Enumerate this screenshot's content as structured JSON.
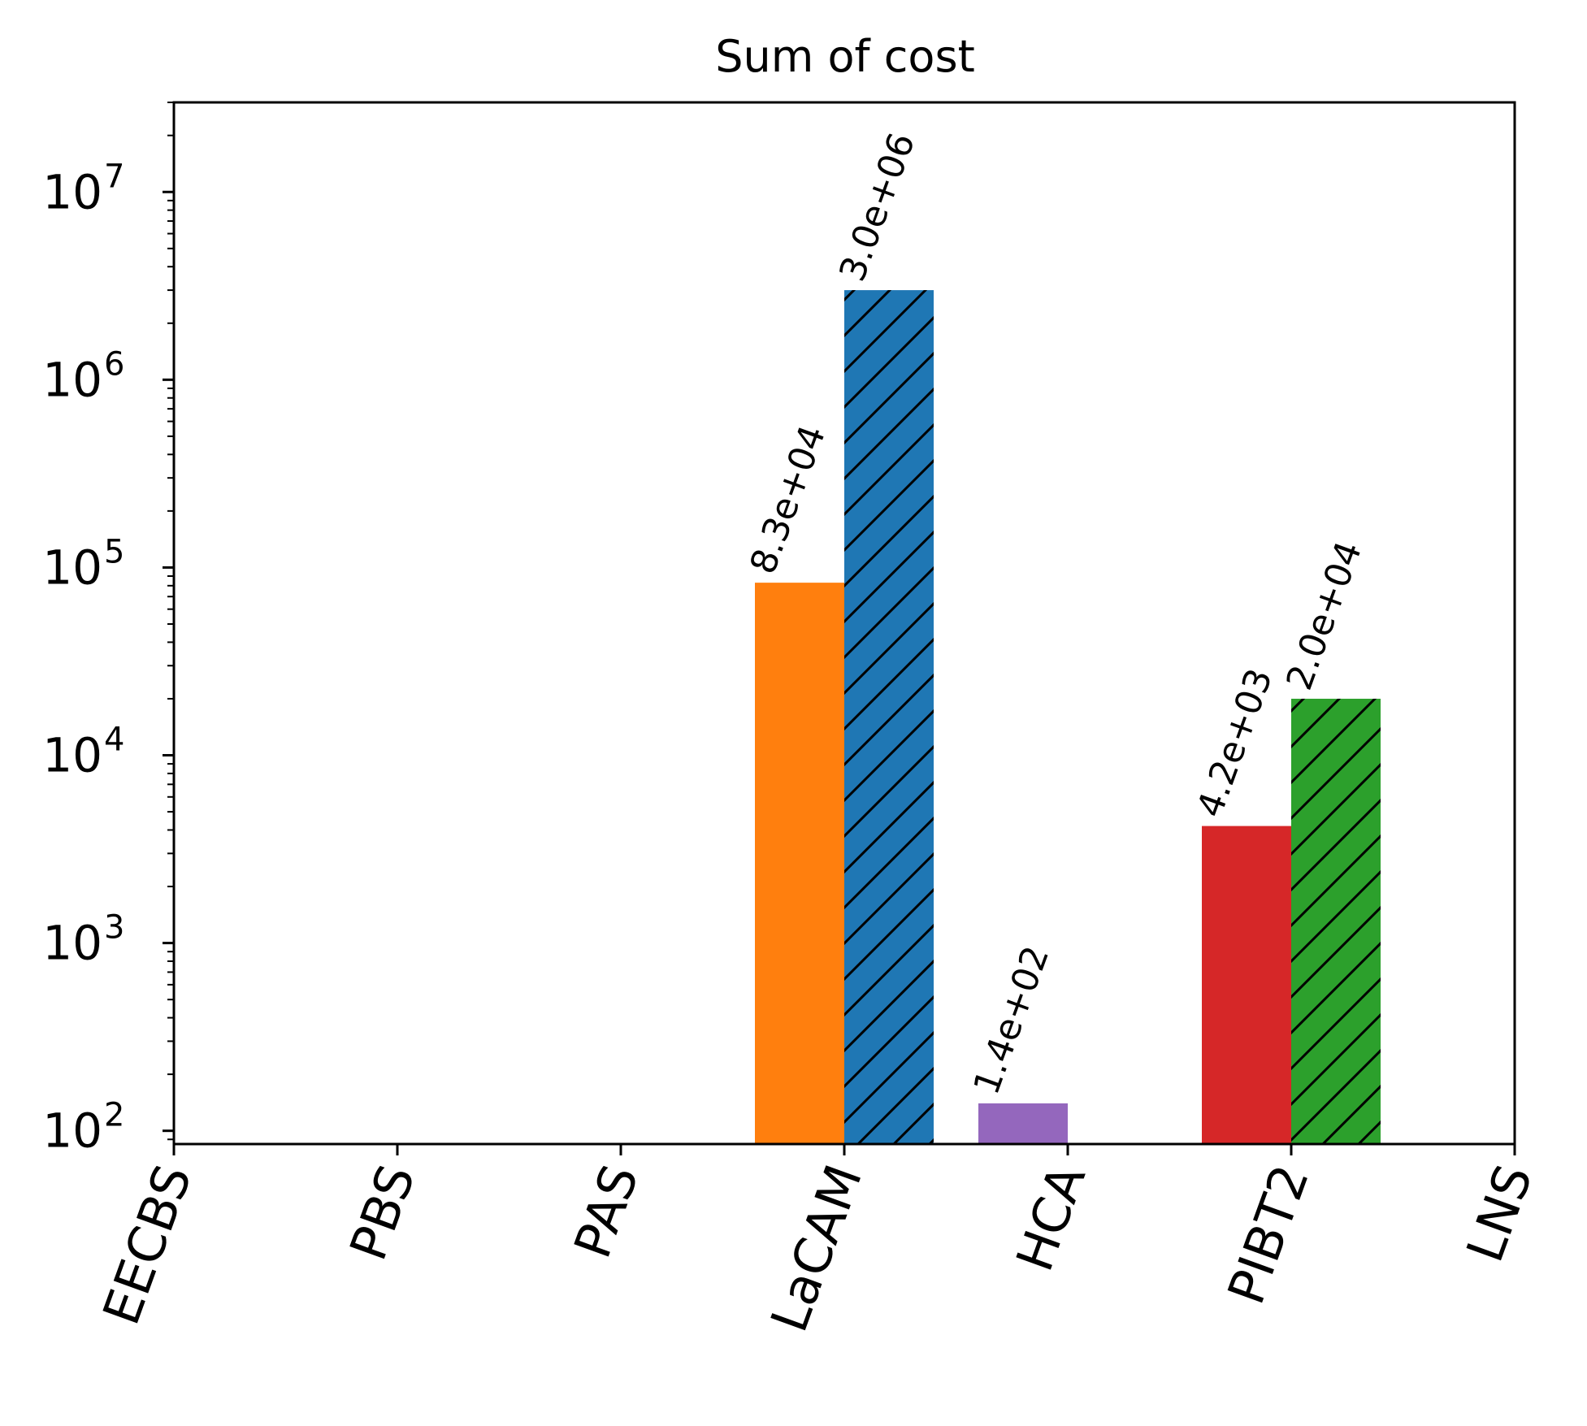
{
  "chart_data": {
    "type": "bar",
    "title": "Sum of cost",
    "xlabel": "",
    "ylabel": "",
    "yscale": "log",
    "ylim": [
      85,
      30000000
    ],
    "ytick_base": "10",
    "ytick_exponents": [
      "2",
      "3",
      "4",
      "5",
      "6",
      "7"
    ],
    "categories": [
      "EECBS",
      "PBS",
      "PAS",
      "LaCAM",
      "HCA",
      "PIBT2",
      "LNS"
    ],
    "grid": false,
    "bars": [
      {
        "category": "LaCAM",
        "slot": "left",
        "value": 83000,
        "label": "8.3e+04",
        "color": "#ff7f0e",
        "hatch": false
      },
      {
        "category": "LaCAM",
        "slot": "right",
        "value": 3000000,
        "label": "3.0e+06",
        "color": "#1f77b4",
        "hatch": true
      },
      {
        "category": "HCA",
        "slot": "left",
        "value": 140,
        "label": "1.4e+02",
        "color": "#9467bd",
        "hatch": false
      },
      {
        "category": "PIBT2",
        "slot": "left",
        "value": 4200,
        "label": "4.2e+03",
        "color": "#d62728",
        "hatch": false
      },
      {
        "category": "PIBT2",
        "slot": "right",
        "value": 20000,
        "label": "2.0e+04",
        "color": "#2ca02c",
        "hatch": true
      }
    ]
  }
}
